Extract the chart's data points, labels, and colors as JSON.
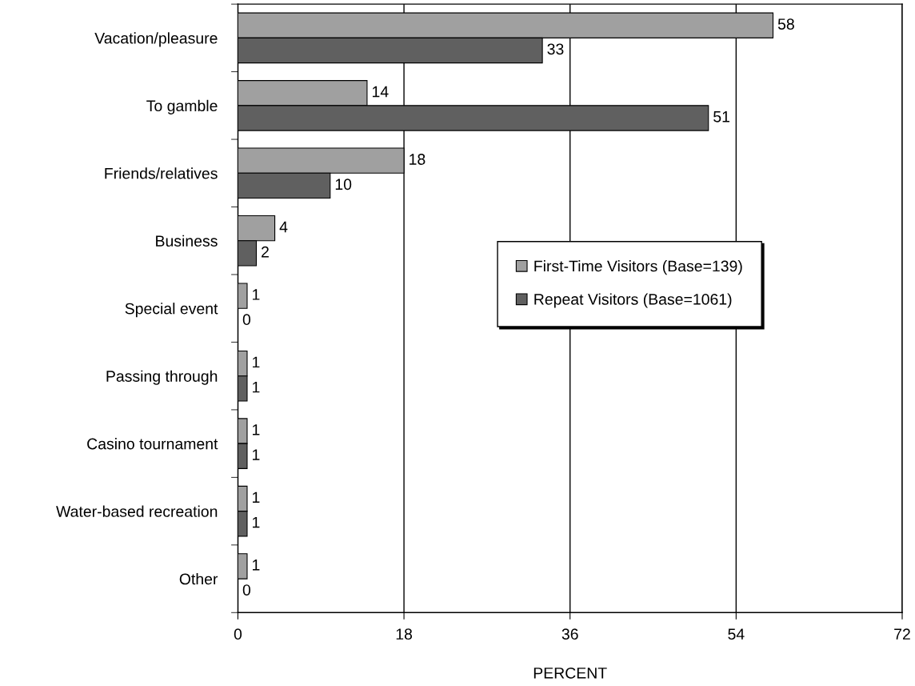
{
  "chart_data": {
    "type": "bar",
    "orientation": "horizontal",
    "xlabel": "PERCENT",
    "categories": [
      "Vacation/pleasure",
      "To gamble",
      "Friends/relatives",
      "Business",
      "Special event",
      "Passing through",
      "Casino tournament",
      "Water-based recreation",
      "Other"
    ],
    "series": [
      {
        "name": "First-Time Visitors (Base=139)",
        "color": "#a0a0a0",
        "values": [
          58,
          14,
          18,
          4,
          1,
          1,
          1,
          1,
          1
        ]
      },
      {
        "name": "Repeat Visitors (Base=1061)",
        "color": "#606060",
        "values": [
          33,
          51,
          10,
          2,
          0,
          1,
          1,
          1,
          0
        ]
      }
    ],
    "xlim": [
      0,
      72
    ],
    "xticks": [
      0,
      18,
      36,
      54,
      72
    ],
    "grid": "x",
    "legend": "right",
    "data_labels": true
  }
}
